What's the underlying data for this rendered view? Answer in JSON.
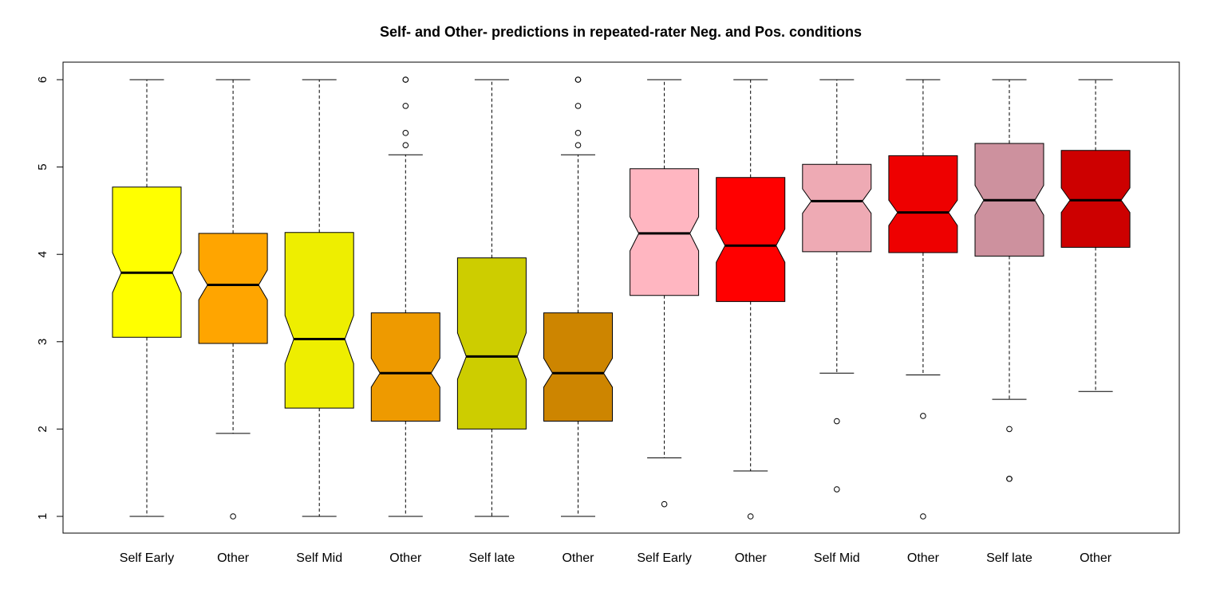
{
  "chart_data": {
    "type": "boxplot",
    "title": "Self- and Other- predictions in repeated-rater Neg. and Pos. conditions",
    "xlabel": "",
    "ylabel": "",
    "ylim": [
      0.8,
      6.2
    ],
    "yticks": [
      1,
      2,
      3,
      4,
      5,
      6
    ],
    "notched": true,
    "grid": false,
    "categories": [
      "Self Early",
      "Other",
      "Self Mid",
      "Other",
      "Self late",
      "Other",
      "Self Early",
      "Other",
      "Self Mid",
      "Other",
      "Self late",
      "Other"
    ],
    "boxes": [
      {
        "whisker_low": 1.0,
        "q1": 3.05,
        "median": 3.79,
        "q3": 4.77,
        "whisker_high": 6.0,
        "notch_low": 3.56,
        "notch_high": 4.02,
        "outliers": [],
        "color": "#ffff00"
      },
      {
        "whisker_low": 1.95,
        "q1": 2.98,
        "median": 3.65,
        "q3": 4.24,
        "whisker_high": 6.0,
        "notch_low": 3.48,
        "notch_high": 3.82,
        "outliers": [
          1.0
        ],
        "color": "#ffa500"
      },
      {
        "whisker_low": 1.0,
        "q1": 2.24,
        "median": 3.03,
        "q3": 4.25,
        "whisker_high": 6.0,
        "notch_low": 2.75,
        "notch_high": 3.3,
        "outliers": [],
        "color": "#eeee00"
      },
      {
        "whisker_low": 1.0,
        "q1": 2.09,
        "median": 2.64,
        "q3": 3.33,
        "whisker_high": 5.14,
        "notch_low": 2.48,
        "notch_high": 2.81,
        "outliers": [
          5.25,
          5.39,
          5.7,
          6.0,
          6.0
        ],
        "color": "#ee9a00"
      },
      {
        "whisker_low": 1.0,
        "q1": 2.0,
        "median": 2.83,
        "q3": 3.96,
        "whisker_high": 6.0,
        "notch_low": 2.57,
        "notch_high": 3.1,
        "outliers": [],
        "color": "#cdcd00"
      },
      {
        "whisker_low": 1.0,
        "q1": 2.09,
        "median": 2.64,
        "q3": 3.33,
        "whisker_high": 5.14,
        "notch_low": 2.48,
        "notch_high": 2.81,
        "outliers": [
          5.25,
          5.39,
          5.7,
          6.0,
          6.0
        ],
        "color": "#cd8500"
      },
      {
        "whisker_low": 1.67,
        "q1": 3.53,
        "median": 4.24,
        "q3": 4.98,
        "whisker_high": 6.0,
        "notch_low": 4.04,
        "notch_high": 4.43,
        "outliers": [
          1.14
        ],
        "color": "#ffb6c1"
      },
      {
        "whisker_low": 1.52,
        "q1": 3.46,
        "median": 4.1,
        "q3": 4.88,
        "whisker_high": 6.0,
        "notch_low": 3.91,
        "notch_high": 4.29,
        "outliers": [
          1.0
        ],
        "color": "#ff0000"
      },
      {
        "whisker_low": 2.64,
        "q1": 4.03,
        "median": 4.61,
        "q3": 5.03,
        "whisker_high": 6.0,
        "notch_low": 4.47,
        "notch_high": 4.75,
        "outliers": [
          1.31,
          2.09
        ],
        "color": "#eeaab4"
      },
      {
        "whisker_low": 2.62,
        "q1": 4.02,
        "median": 4.48,
        "q3": 5.13,
        "whisker_high": 6.0,
        "notch_low": 4.33,
        "notch_high": 4.62,
        "outliers": [
          1.0,
          2.15
        ],
        "color": "#ee0000"
      },
      {
        "whisker_low": 2.34,
        "q1": 3.98,
        "median": 4.62,
        "q3": 5.27,
        "whisker_high": 6.0,
        "notch_low": 4.45,
        "notch_high": 4.79,
        "outliers": [
          1.43,
          1.43,
          2.0
        ],
        "color": "#cd919e"
      },
      {
        "whisker_low": 2.43,
        "q1": 4.08,
        "median": 4.62,
        "q3": 5.19,
        "whisker_high": 6.0,
        "notch_low": 4.48,
        "notch_high": 4.76,
        "outliers": [],
        "color": "#cd0000"
      }
    ]
  }
}
